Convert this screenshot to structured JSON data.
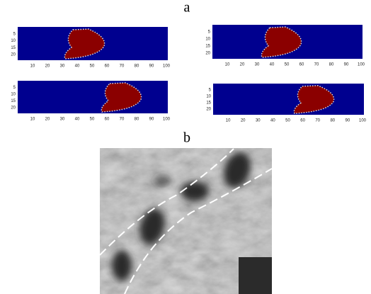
{
  "panels": {
    "a": {
      "label": "a",
      "plots": [
        {
          "xticks": [
            10,
            20,
            30,
            40,
            50,
            60,
            70,
            80,
            90,
            100
          ],
          "yticks": [
            5,
            10,
            15,
            20
          ]
        },
        {
          "xticks": [
            10,
            20,
            30,
            40,
            50,
            60,
            70,
            80,
            90,
            100
          ],
          "yticks": [
            5,
            10,
            15,
            20
          ]
        },
        {
          "xticks": [
            10,
            20,
            30,
            40,
            50,
            60,
            70,
            80,
            90,
            100
          ],
          "yticks": [
            5,
            10,
            15,
            20
          ]
        },
        {
          "xticks": [
            10,
            20,
            30,
            40,
            50,
            60,
            70,
            80,
            90,
            100
          ],
          "yticks": [
            5,
            10,
            15,
            20
          ]
        }
      ]
    },
    "b": {
      "label": "b"
    }
  }
}
